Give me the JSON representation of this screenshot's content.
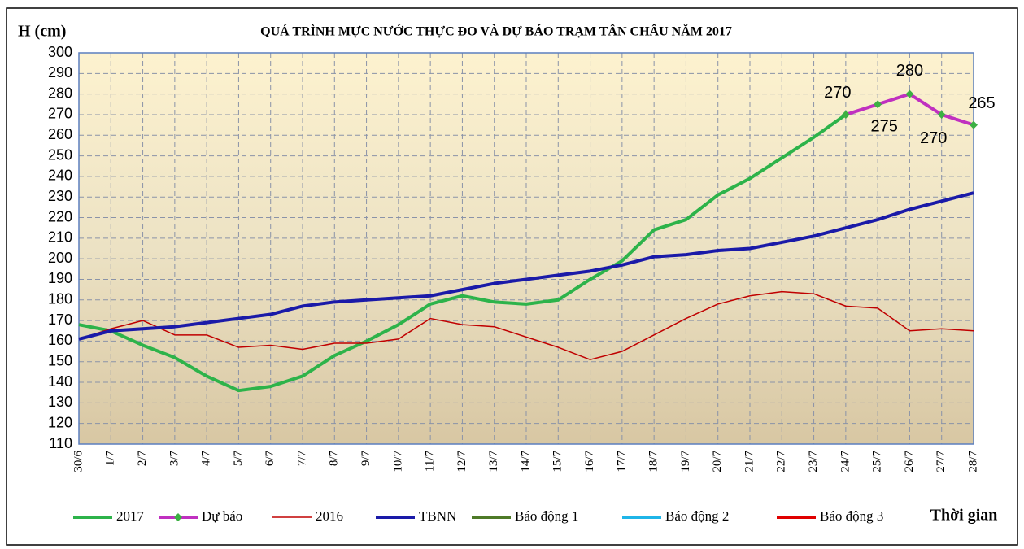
{
  "chart_data": {
    "type": "line",
    "title": "QUÁ TRÌNH MỰC NƯỚC THỰC ĐO VÀ DỰ BÁO TRẠM TÂN CHÂU NĂM 2017",
    "y_label": "H (cm)",
    "x_label": "Thời gian",
    "categories": [
      "30/6",
      "1/7",
      "2/7",
      "3/7",
      "4/7",
      "5/7",
      "6/7",
      "7/7",
      "8/7",
      "9/7",
      "10/7",
      "11/7",
      "12/7",
      "13/7",
      "14/7",
      "15/7",
      "16/7",
      "17/7",
      "18/7",
      "19/7",
      "20/7",
      "21/7",
      "22/7",
      "23/7",
      "24/7",
      "25/7",
      "26/7",
      "27/7",
      "28/7"
    ],
    "ylim": [
      110,
      300
    ],
    "yticks": [
      110,
      120,
      130,
      140,
      150,
      160,
      170,
      180,
      190,
      200,
      210,
      220,
      230,
      240,
      250,
      260,
      270,
      280,
      290,
      300
    ],
    "grid": true,
    "series": [
      {
        "name": "2017",
        "color": "#2db34a",
        "width": 4,
        "values": [
          168,
          165,
          158,
          152,
          143,
          136,
          138,
          143,
          153,
          160,
          168,
          178,
          182,
          179,
          178,
          180,
          190,
          199,
          214,
          219,
          231,
          239,
          249,
          259,
          270,
          null,
          null,
          null,
          null
        ]
      },
      {
        "name": "Dự báo",
        "color": "#c030c0",
        "width": 4,
        "marker_color": "#3cb043",
        "data_labels": true,
        "values": [
          null,
          null,
          null,
          null,
          null,
          null,
          null,
          null,
          null,
          null,
          null,
          null,
          null,
          null,
          null,
          null,
          null,
          null,
          null,
          null,
          null,
          null,
          null,
          null,
          270,
          275,
          280,
          270,
          265
        ]
      },
      {
        "name": "2016",
        "color": "#c00000",
        "width": 1.5,
        "values": [
          161,
          166,
          170,
          163,
          163,
          157,
          158,
          156,
          159,
          159,
          161,
          171,
          168,
          167,
          162,
          157,
          151,
          155,
          163,
          171,
          178,
          182,
          184,
          183,
          177,
          176,
          165,
          166,
          165
        ]
      },
      {
        "name": "TBNN",
        "color": "#1a1aa8",
        "width": 4,
        "values": [
          161,
          165,
          166,
          167,
          169,
          171,
          173,
          177,
          179,
          180,
          181,
          182,
          185,
          188,
          190,
          192,
          194,
          197,
          201,
          202,
          204,
          205,
          208,
          211,
          215,
          219,
          224,
          228,
          232
        ]
      },
      {
        "name": "Báo động 1",
        "color": "#4e7a28",
        "width": 4
      },
      {
        "name": "Báo động 2",
        "color": "#1fb5e8",
        "width": 4
      },
      {
        "name": "Báo động 3",
        "color": "#e00000",
        "width": 4
      }
    ]
  }
}
